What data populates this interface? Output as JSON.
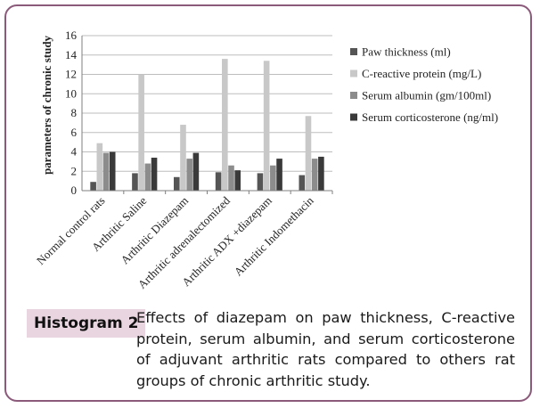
{
  "chart_data": {
    "type": "bar",
    "ylabel": "parameters of chronic study",
    "ylim": [
      0,
      16
    ],
    "yticks": [
      0,
      2,
      4,
      6,
      8,
      10,
      12,
      14,
      16
    ],
    "grid": true,
    "legend_position": "right",
    "categories": [
      "Normal control rats",
      "Arthritic Saline",
      "Arthritic Diazepam",
      "Arthritic adrenalectomized",
      "Arthritic ADX +diazepam",
      "Arthritic Indomethacin"
    ],
    "series": [
      {
        "name": "Paw thickness (ml)",
        "color": "#555555",
        "values": [
          0.9,
          1.8,
          1.4,
          1.9,
          1.8,
          1.6
        ]
      },
      {
        "name": "C-reactive protein (mg/L)",
        "color": "#c8c8c8",
        "values": [
          4.9,
          12.0,
          6.8,
          13.6,
          13.4,
          7.7
        ]
      },
      {
        "name": "Serum albumin (gm/100ml)",
        "color": "#8c8c8c",
        "values": [
          3.9,
          2.8,
          3.3,
          2.6,
          2.6,
          3.3
        ]
      },
      {
        "name": "Serum corticosterone (ng/ml)",
        "color": "#3a3a3a",
        "values": [
          4.0,
          3.4,
          3.9,
          2.1,
          3.3,
          3.5
        ]
      }
    ]
  },
  "caption": {
    "label": "Histogram 2",
    "text": "Effects of diazepam on paw thickness, C-reactive protein, serum albumin, and serum corticosterone of adjuvant arthritic rats compared to others rat groups of chronic arthritic study.",
    "badge_color": "#e9d5df",
    "border_color": "#8b5a7a"
  }
}
